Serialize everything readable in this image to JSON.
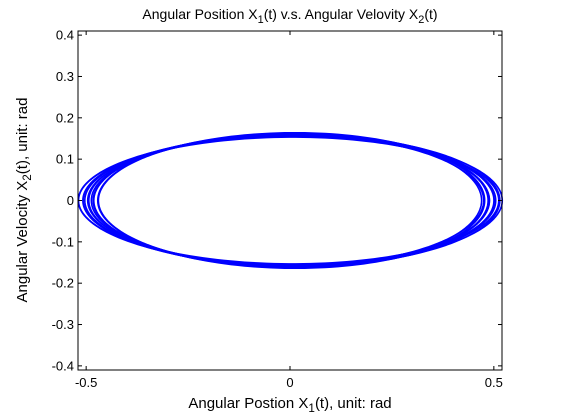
{
  "chart_data": {
    "type": "line",
    "title": {
      "parts": [
        {
          "text": "Angular Position X"
        },
        {
          "text": "1",
          "sub": true
        },
        {
          "text": "(t)  v.s.  Angular Velovity X"
        },
        {
          "text": "2",
          "sub": true
        },
        {
          "text": "(t)"
        }
      ]
    },
    "xlabel": {
      "parts": [
        {
          "text": "Angular Postion X"
        },
        {
          "text": "1",
          "sub": true
        },
        {
          "text": "(t), unit: rad"
        }
      ]
    },
    "ylabel": {
      "parts": [
        {
          "text": "Angular Velocity X"
        },
        {
          "text": "2",
          "sub": true
        },
        {
          "text": "(t), unit: rad"
        }
      ]
    },
    "xlim": [
      -0.52,
      0.52
    ],
    "ylim": [
      -0.41,
      0.41
    ],
    "xticks": [
      -0.5,
      0,
      0.5
    ],
    "xticklabels": [
      "-0.5",
      "0",
      "0.5"
    ],
    "yticks": [
      -0.4,
      -0.3,
      -0.2,
      -0.1,
      0,
      0.1,
      0.2,
      0.3,
      0.4
    ],
    "yticklabels": [
      "-0.4",
      "-0.3",
      "-0.2",
      "-0.1",
      "0",
      "0.1",
      "0.2",
      "0.3",
      "0.4"
    ],
    "grid": false,
    "series": [
      {
        "color": "#0000ff",
        "description": "closed phase-plane orbit, ellipse traced repeatedly with slight variation",
        "x_amplitude_range": [
          0.47,
          0.52
        ],
        "y_amplitude_range": [
          0.147,
          0.16
        ],
        "loops": 12
      }
    ]
  }
}
